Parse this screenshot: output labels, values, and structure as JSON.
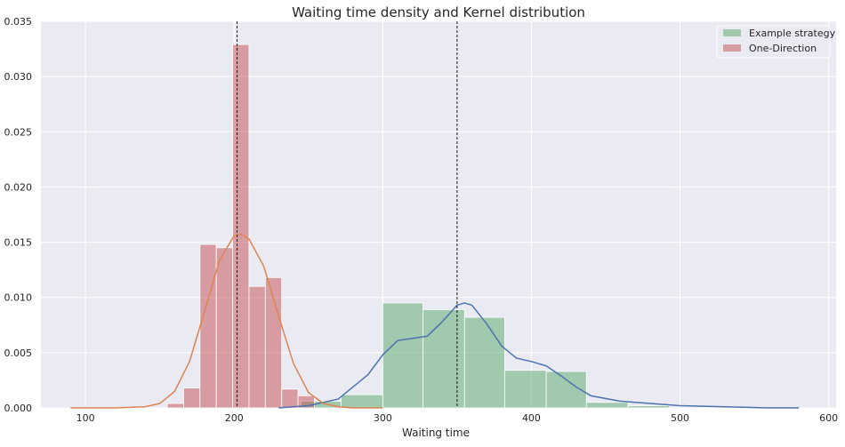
{
  "chart_data": {
    "type": "bar",
    "title": "Waiting time density and Kernel distribution",
    "xlabel": "Waiting time",
    "ylabel": "",
    "xlim": [
      70,
      605
    ],
    "ylim": [
      0,
      0.035
    ],
    "x_ticks": [
      100,
      200,
      300,
      400,
      500,
      600
    ],
    "y_ticks": [
      0.0,
      0.005,
      0.01,
      0.015,
      0.02,
      0.025,
      0.03,
      0.035
    ],
    "x_tick_labels": [
      "100",
      "200",
      "300",
      "400",
      "500",
      "600"
    ],
    "y_tick_labels": [
      "0.000",
      "0.005",
      "0.010",
      "0.015",
      "0.020",
      "0.025",
      "0.030",
      "0.035"
    ],
    "grid": true,
    "legend_position": "upper-right",
    "background_color": "#eaeaf2",
    "series": [
      {
        "name": "Example strategy",
        "kind": "histogram",
        "color": "#55a868",
        "bins": [
          {
            "x0": 245,
            "x1": 272,
            "density": 0.0006
          },
          {
            "x0": 272,
            "x1": 300,
            "density": 0.0012
          },
          {
            "x0": 300,
            "x1": 327,
            "density": 0.0095
          },
          {
            "x0": 327,
            "x1": 355,
            "density": 0.0089
          },
          {
            "x0": 355,
            "x1": 382,
            "density": 0.0082
          },
          {
            "x0": 382,
            "x1": 410,
            "density": 0.0034
          },
          {
            "x0": 410,
            "x1": 437,
            "density": 0.0033
          },
          {
            "x0": 437,
            "x1": 465,
            "density": 0.0005
          },
          {
            "x0": 465,
            "x1": 493,
            "density": 0.0002
          }
        ]
      },
      {
        "name": "One-Direction",
        "kind": "histogram",
        "color": "#c44e52",
        "bins": [
          {
            "x0": 155,
            "x1": 166,
            "density": 0.0004
          },
          {
            "x0": 166,
            "x1": 177,
            "density": 0.0018
          },
          {
            "x0": 177,
            "x1": 188,
            "density": 0.0148
          },
          {
            "x0": 188,
            "x1": 199,
            "density": 0.0145
          },
          {
            "x0": 199,
            "x1": 210,
            "density": 0.0329
          },
          {
            "x0": 210,
            "x1": 221,
            "density": 0.011
          },
          {
            "x0": 221,
            "x1": 232,
            "density": 0.0118
          },
          {
            "x0": 232,
            "x1": 243,
            "density": 0.0017
          },
          {
            "x0": 243,
            "x1": 254,
            "density": 0.0011
          }
        ]
      },
      {
        "name": "",
        "kind": "kde",
        "color": "#4c72b0",
        "x": [
          230,
          250,
          270,
          290,
          300,
          310,
          320,
          330,
          340,
          350,
          355,
          360,
          370,
          380,
          390,
          400,
          410,
          420,
          430,
          440,
          460,
          480,
          500,
          530,
          560,
          580
        ],
        "y": [
          0.0,
          0.0002,
          0.0008,
          0.003,
          0.0048,
          0.0061,
          0.0063,
          0.0065,
          0.0078,
          0.0093,
          0.0095,
          0.0093,
          0.0076,
          0.0056,
          0.0045,
          0.0042,
          0.0038,
          0.0029,
          0.0019,
          0.0011,
          0.0006,
          0.0004,
          0.0002,
          0.0001,
          0.0,
          0.0
        ]
      },
      {
        "name": "",
        "kind": "kde",
        "color": "#dd8452",
        "x": [
          90,
          120,
          140,
          150,
          160,
          170,
          180,
          190,
          200,
          205,
          210,
          220,
          230,
          240,
          250,
          260,
          270,
          280,
          300
        ],
        "y": [
          0.0,
          0.0,
          0.0001,
          0.0004,
          0.0015,
          0.0042,
          0.0087,
          0.0133,
          0.0156,
          0.0157,
          0.0153,
          0.0128,
          0.0083,
          0.004,
          0.0014,
          0.0004,
          0.0001,
          0.0,
          0.0
        ]
      }
    ],
    "reference_lines": [
      {
        "x": 202,
        "color": "#000000",
        "style": "dashed"
      },
      {
        "x": 350,
        "color": "#000000",
        "style": "dashed"
      }
    ]
  }
}
